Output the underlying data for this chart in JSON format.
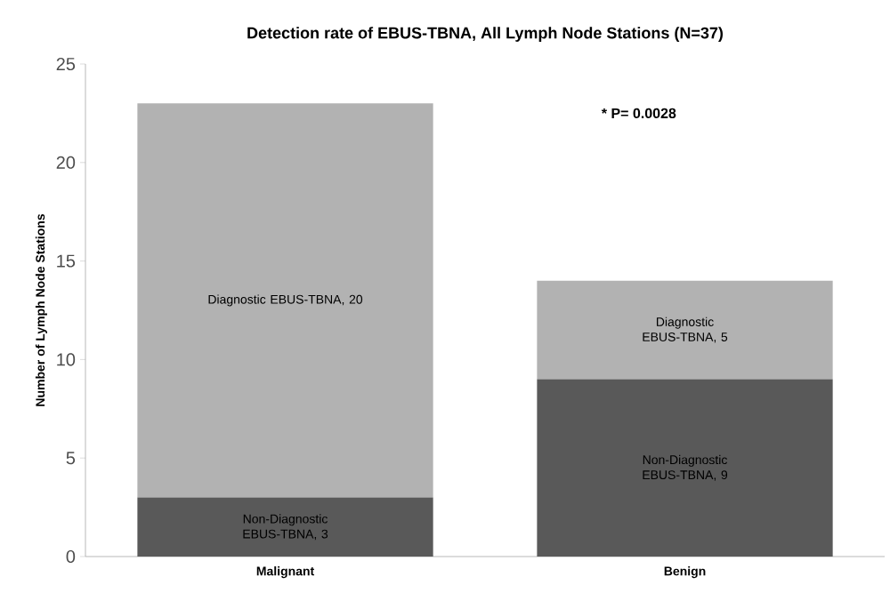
{
  "chart_data": {
    "type": "bar",
    "stacked": true,
    "title": "Detection rate of EBUS-TBNA, All Lymph Node Stations (N=37)",
    "ylabel": "Number of Lymph Node Stations",
    "categories": [
      "Malignant",
      "Benign"
    ],
    "series": [
      {
        "color": "#595959",
        "values": [
          3,
          9
        ],
        "value_labels": [
          "Non-Diagnostic EBUS-TBNA, 3",
          "Non-Diagnostic EBUS-TBNA, 9"
        ]
      },
      {
        "color": "#b2b2b2",
        "values": [
          20,
          5
        ],
        "value_labels": [
          "Diagnostic EBUS-TBNA, 20",
          "Diagnostic EBUS-TBNA, 5"
        ]
      }
    ],
    "annotations": [
      "* P= 0.0028"
    ],
    "ylim": [
      0,
      25
    ],
    "yticks": [
      0,
      5,
      10,
      15,
      20,
      25
    ],
    "grid": false
  }
}
